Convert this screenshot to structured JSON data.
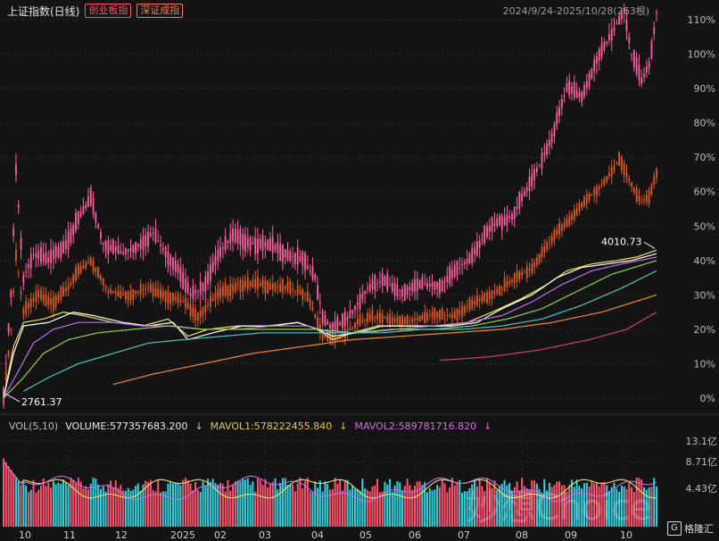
{
  "header": {
    "title": "上证指数(日线)",
    "tag1": "创业板指",
    "tag2": "深证成指",
    "range": "2024/9/24-2025/10/28(263根)"
  },
  "volume_bar": {
    "label": "VOL(5,10)",
    "volume": "VOLUME:577357683.200",
    "mavol1": "MAVOL1:578222455.840",
    "mavol2": "MAVOL2:589781716.820"
  },
  "watermark": "妙想Choice",
  "logo": {
    "icon": "G",
    "text": "格隆汇"
  },
  "colors": {
    "background": "#141414",
    "up": "#ff5370",
    "down": "#2fd3e0",
    "series_a": "#ff5fa2",
    "series_b": "#e05a1e",
    "ma_yellow": "#f1e05a",
    "ma_white": "#ffffff",
    "ma_purple": "#c86bf0",
    "ma_green": "#8fd14f",
    "ma_teal": "#4fc3c7",
    "ma_orange": "#f08a2c",
    "ma_red": "#d04060"
  },
  "chart_data": {
    "type": "line",
    "x_ticks": [
      "10",
      "11",
      "12",
      "2025",
      "02",
      "03",
      "04",
      "05",
      "06",
      "07",
      "08",
      "09",
      "10"
    ],
    "y_ticks": [
      "110%",
      "100%",
      "90%",
      "80%",
      "70%",
      "60%",
      "50%",
      "40%",
      "30%",
      "20%",
      "10%",
      "0%"
    ],
    "ylim": [
      0,
      110
    ],
    "volume_ticks": [
      "13.1亿",
      "8.71亿",
      "4.43亿"
    ],
    "annotations": [
      {
        "text": "4010.73",
        "x": 262,
        "y": 43
      },
      {
        "text": "2761.37",
        "x": 0,
        "y": 0
      }
    ],
    "series": [
      {
        "key": "a",
        "points": [
          [
            0,
            0
          ],
          [
            3,
            30
          ],
          [
            5,
            66
          ],
          [
            8,
            35
          ],
          [
            12,
            42
          ],
          [
            18,
            40
          ],
          [
            25,
            45
          ],
          [
            30,
            52
          ],
          [
            35,
            58
          ],
          [
            40,
            45
          ],
          [
            48,
            42
          ],
          [
            55,
            45
          ],
          [
            60,
            48
          ],
          [
            65,
            42
          ],
          [
            70,
            38
          ],
          [
            75,
            30
          ],
          [
            80,
            32
          ],
          [
            86,
            42
          ],
          [
            92,
            47
          ],
          [
            100,
            45
          ],
          [
            108,
            44
          ],
          [
            114,
            42
          ],
          [
            120,
            40
          ],
          [
            125,
            35
          ],
          [
            128,
            24
          ],
          [
            132,
            20
          ],
          [
            138,
            23
          ],
          [
            146,
            32
          ],
          [
            152,
            34
          ],
          [
            160,
            31
          ],
          [
            168,
            33
          ],
          [
            176,
            33
          ],
          [
            186,
            40
          ],
          [
            196,
            50
          ],
          [
            204,
            53
          ],
          [
            212,
            63
          ],
          [
            220,
            76
          ],
          [
            226,
            90
          ],
          [
            232,
            88
          ],
          [
            238,
            98
          ],
          [
            244,
            106
          ],
          [
            249,
            113
          ],
          [
            252,
            100
          ],
          [
            256,
            92
          ],
          [
            259,
            97
          ],
          [
            262,
            112
          ]
        ]
      },
      {
        "key": "b",
        "points": [
          [
            0,
            0
          ],
          [
            3,
            20
          ],
          [
            5,
            42
          ],
          [
            8,
            25
          ],
          [
            14,
            30
          ],
          [
            20,
            28
          ],
          [
            26,
            32
          ],
          [
            30,
            37
          ],
          [
            35,
            40
          ],
          [
            42,
            31
          ],
          [
            50,
            30
          ],
          [
            58,
            32
          ],
          [
            65,
            30
          ],
          [
            72,
            28
          ],
          [
            78,
            24
          ],
          [
            86,
            30
          ],
          [
            94,
            33
          ],
          [
            104,
            33
          ],
          [
            114,
            32
          ],
          [
            122,
            30
          ],
          [
            128,
            18
          ],
          [
            134,
            17
          ],
          [
            142,
            22
          ],
          [
            150,
            24
          ],
          [
            160,
            22
          ],
          [
            170,
            24
          ],
          [
            180,
            24
          ],
          [
            190,
            28
          ],
          [
            200,
            32
          ],
          [
            212,
            38
          ],
          [
            222,
            48
          ],
          [
            232,
            56
          ],
          [
            240,
            62
          ],
          [
            247,
            69
          ],
          [
            252,
            62
          ],
          [
            256,
            57
          ],
          [
            259,
            59
          ],
          [
            262,
            65
          ]
        ]
      },
      {
        "key": "ma_yellow",
        "points": [
          [
            0,
            0
          ],
          [
            4,
            15
          ],
          [
            8,
            22
          ],
          [
            16,
            23
          ],
          [
            24,
            25
          ],
          [
            32,
            24
          ],
          [
            44,
            22
          ],
          [
            56,
            21
          ],
          [
            66,
            23
          ],
          [
            74,
            18
          ],
          [
            82,
            20
          ],
          [
            94,
            21
          ],
          [
            106,
            21
          ],
          [
            118,
            22
          ],
          [
            126,
            20
          ],
          [
            132,
            17
          ],
          [
            140,
            19
          ],
          [
            150,
            21
          ],
          [
            164,
            21
          ],
          [
            176,
            21
          ],
          [
            186,
            22
          ],
          [
            196,
            25
          ],
          [
            208,
            29
          ],
          [
            218,
            33
          ],
          [
            226,
            37
          ],
          [
            236,
            39
          ],
          [
            246,
            40
          ],
          [
            254,
            41
          ],
          [
            262,
            43
          ]
        ]
      },
      {
        "key": "ma_white",
        "points": [
          [
            0,
            0
          ],
          [
            4,
            13
          ],
          [
            8,
            21
          ],
          [
            18,
            22
          ],
          [
            28,
            25
          ],
          [
            36,
            24
          ],
          [
            48,
            22
          ],
          [
            58,
            21
          ],
          [
            68,
            22
          ],
          [
            74,
            17
          ],
          [
            84,
            19
          ],
          [
            96,
            21
          ],
          [
            108,
            21
          ],
          [
            118,
            22
          ],
          [
            126,
            20
          ],
          [
            132,
            18
          ],
          [
            142,
            19
          ],
          [
            152,
            21
          ],
          [
            166,
            21
          ],
          [
            180,
            21
          ],
          [
            190,
            22
          ],
          [
            200,
            26
          ],
          [
            212,
            30
          ],
          [
            222,
            35
          ],
          [
            232,
            38
          ],
          [
            242,
            39
          ],
          [
            252,
            40
          ],
          [
            262,
            42
          ]
        ]
      },
      {
        "key": "ma_purple",
        "points": [
          [
            0,
            0
          ],
          [
            6,
            8
          ],
          [
            12,
            16
          ],
          [
            20,
            20
          ],
          [
            30,
            22
          ],
          [
            44,
            22
          ],
          [
            56,
            21
          ],
          [
            68,
            21
          ],
          [
            80,
            20
          ],
          [
            94,
            20
          ],
          [
            108,
            21
          ],
          [
            122,
            21
          ],
          [
            132,
            19
          ],
          [
            144,
            19
          ],
          [
            158,
            20
          ],
          [
            172,
            21
          ],
          [
            186,
            22
          ],
          [
            200,
            24
          ],
          [
            212,
            28
          ],
          [
            224,
            33
          ],
          [
            236,
            37
          ],
          [
            248,
            39
          ],
          [
            262,
            41
          ]
        ]
      },
      {
        "key": "ma_green",
        "points": [
          [
            0,
            0
          ],
          [
            8,
            6
          ],
          [
            16,
            13
          ],
          [
            26,
            17
          ],
          [
            38,
            19
          ],
          [
            52,
            20
          ],
          [
            66,
            21
          ],
          [
            80,
            20
          ],
          [
            96,
            20
          ],
          [
            112,
            20
          ],
          [
            126,
            20
          ],
          [
            140,
            19
          ],
          [
            156,
            20
          ],
          [
            172,
            20
          ],
          [
            188,
            21
          ],
          [
            202,
            23
          ],
          [
            216,
            26
          ],
          [
            230,
            31
          ],
          [
            244,
            36
          ],
          [
            262,
            40
          ]
        ]
      },
      {
        "key": "ma_teal",
        "points": [
          [
            8,
            2
          ],
          [
            18,
            6
          ],
          [
            30,
            10
          ],
          [
            44,
            13
          ],
          [
            58,
            16
          ],
          [
            72,
            17
          ],
          [
            88,
            18
          ],
          [
            104,
            19
          ],
          [
            120,
            19
          ],
          [
            136,
            19
          ],
          [
            152,
            19
          ],
          [
            168,
            20
          ],
          [
            184,
            20
          ],
          [
            200,
            21
          ],
          [
            216,
            23
          ],
          [
            232,
            27
          ],
          [
            248,
            32
          ],
          [
            262,
            37
          ]
        ]
      },
      {
        "key": "ma_orange",
        "points": [
          [
            44,
            4
          ],
          [
            60,
            7
          ],
          [
            80,
            10
          ],
          [
            100,
            13
          ],
          [
            120,
            15
          ],
          [
            140,
            17
          ],
          [
            160,
            18
          ],
          [
            180,
            19
          ],
          [
            200,
            20
          ],
          [
            220,
            22
          ],
          [
            240,
            25
          ],
          [
            262,
            30
          ]
        ]
      },
      {
        "key": "ma_red",
        "points": [
          [
            175,
            11
          ],
          [
            195,
            12
          ],
          [
            215,
            14
          ],
          [
            235,
            17
          ],
          [
            250,
            20
          ],
          [
            262,
            25
          ]
        ]
      }
    ]
  }
}
